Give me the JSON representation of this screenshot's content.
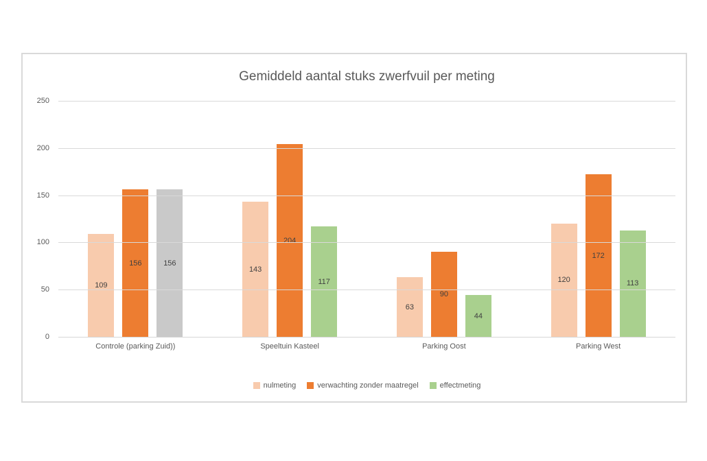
{
  "chart_data": {
    "type": "bar",
    "title": "Gemiddeld aantal stuks zwerfvuil per meting",
    "categories": [
      "Controle (parking Zuid))",
      "Speeltuin Kasteel",
      "Parking Oost",
      "Parking West"
    ],
    "series": [
      {
        "name": "nulmeting",
        "color": "#F8CBAD",
        "values": [
          109,
          143,
          63,
          120
        ]
      },
      {
        "name": "verwachting zonder maatregel",
        "color": "#ED7D31",
        "values": [
          156,
          204,
          90,
          172
        ]
      },
      {
        "name": "effectmeting",
        "color": "#A9D08E",
        "values": [
          156,
          117,
          44,
          113
        ],
        "point_colors": {
          "0": "#C9C9C9"
        }
      }
    ],
    "ylim": [
      0,
      250
    ],
    "yticks": [
      0,
      50,
      100,
      150,
      200,
      250
    ],
    "grid": true,
    "legend_position": "bottom",
    "data_labels": "center",
    "colors": {
      "title_text": "#595959",
      "axis_text": "#595959",
      "data_label_text": "#404040",
      "gridline": "#D9D9D9",
      "chart_border": "#D9D9D9",
      "background": "#FFFFFF"
    }
  }
}
